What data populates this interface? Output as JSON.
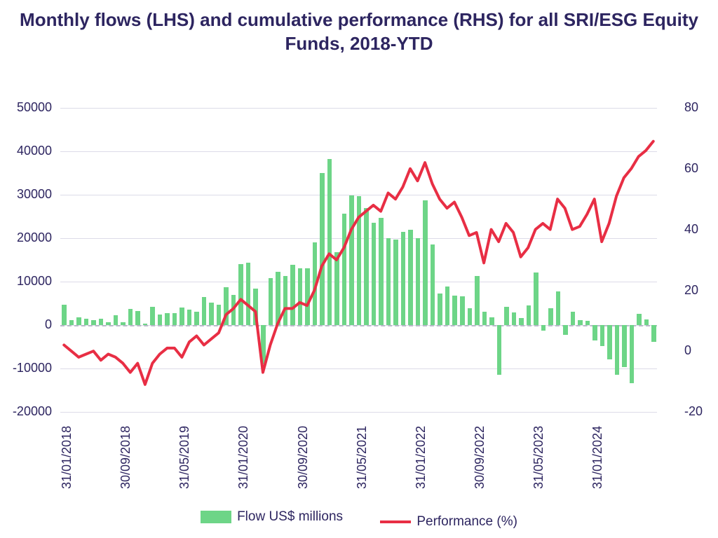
{
  "chart": {
    "type": "combo_bar_line",
    "title": "Monthly flows (LHS) and cumulative performance (RHS) for all SRI/ESG Equity Funds, 2018-YTD",
    "title_color": "#2d2560",
    "title_fontsize": 26,
    "axis_label_color": "#2d2560",
    "axis_fontsize": 18,
    "legend_fontsize": 19,
    "background_color": "#ffffff",
    "grid_color": "#dcdbe8",
    "zero_line_color": "#b9b9c9",
    "y_left": {
      "min": -20000,
      "max": 50000,
      "ticks": [
        -20000,
        -10000,
        0,
        10000,
        20000,
        30000,
        40000,
        50000
      ]
    },
    "y_right": {
      "min": -20,
      "max": 80,
      "ticks": [
        -20,
        0,
        20,
        40,
        60,
        80
      ]
    },
    "x_labels": [
      "31/01/2018",
      "30/09/2018",
      "31/05/2019",
      "31/01/2020",
      "30/09/2020",
      "31/05/2021",
      "31/01/2022",
      "30/09/2022",
      "31/05/2023",
      "31/01/2024"
    ],
    "bars": {
      "label": "Flow US$ millions",
      "color": "#6dd587",
      "width_ratio": 0.62,
      "values": [
        4700,
        1200,
        1800,
        1400,
        1200,
        1500,
        600,
        2300,
        700,
        3700,
        3300,
        400,
        4200,
        2500,
        2800,
        2800,
        4000,
        3600,
        3100,
        6400,
        5200,
        4700,
        8700,
        7000,
        14000,
        14400,
        8400,
        -9100,
        10800,
        12200,
        11300,
        13900,
        13000,
        13100,
        19000,
        35000,
        38200,
        16700,
        25600,
        29800,
        29700,
        27000,
        23500,
        24600,
        20000,
        19700,
        21500,
        21900,
        20000,
        28700,
        18500,
        7200,
        8800,
        6700,
        6600,
        3800,
        11300,
        3100,
        1800,
        -11400,
        4200,
        2900,
        1600,
        4500,
        12100,
        -1300,
        3800,
        7800,
        -2300,
        3000,
        1200,
        900,
        -3600,
        -4800,
        -7900,
        -11400,
        -9600,
        -13400,
        2600,
        1300,
        -3800
      ]
    },
    "line": {
      "label": "Performance (%)",
      "color": "#e82e44",
      "width": 4,
      "values": [
        2,
        0,
        -2,
        -1,
        0,
        -3,
        -1,
        -2,
        -4,
        -7,
        -4,
        -11,
        -4,
        -1,
        1,
        1,
        -2,
        3,
        5,
        2,
        4,
        6,
        12,
        14,
        17,
        15,
        13,
        -7,
        2,
        9,
        14,
        14,
        16,
        15,
        20,
        28,
        32,
        30,
        34,
        40,
        44,
        46,
        48,
        46,
        52,
        50,
        54,
        60,
        56,
        62,
        55,
        50,
        47,
        49,
        44,
        38,
        39,
        29,
        40,
        36,
        42,
        39,
        31,
        34,
        40,
        42,
        40,
        50,
        47,
        40,
        41,
        45,
        50,
        36,
        42,
        51,
        57,
        60,
        64,
        66,
        69
      ]
    }
  }
}
